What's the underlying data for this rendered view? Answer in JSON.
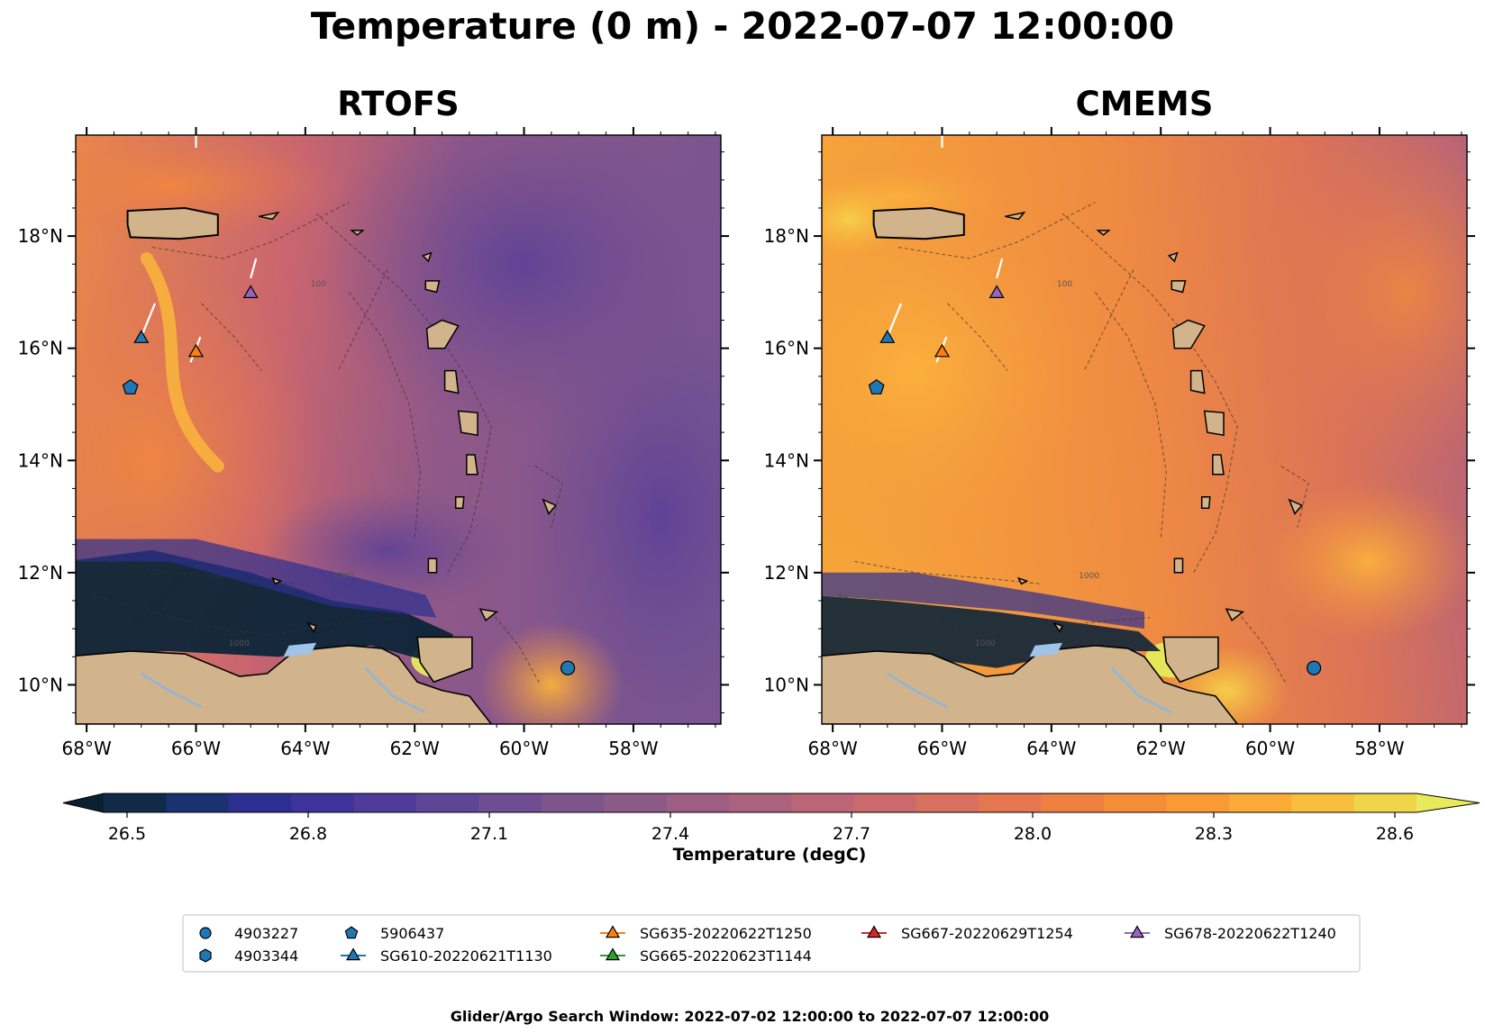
{
  "figure": {
    "title": "Temperature (0 m) - 2022-07-07 12:00:00",
    "footer": "Glider/Argo Search Window: 2022-07-02 12:00:00 to 2022-07-07 12:00:00"
  },
  "map": {
    "lon_range": [
      -68.2,
      -56.4
    ],
    "lat_range": [
      9.3,
      19.8
    ],
    "x_ticks": [
      {
        "value": -68,
        "label": "68°W"
      },
      {
        "value": -66,
        "label": "66°W"
      },
      {
        "value": -64,
        "label": "64°W"
      },
      {
        "value": -62,
        "label": "62°W"
      },
      {
        "value": -60,
        "label": "60°W"
      },
      {
        "value": -58,
        "label": "58°W"
      }
    ],
    "y_ticks": [
      {
        "value": 10,
        "label": "10°N"
      },
      {
        "value": 12,
        "label": "12°N"
      },
      {
        "value": 14,
        "label": "14°N"
      },
      {
        "value": 16,
        "label": "16°N"
      },
      {
        "value": 18,
        "label": "18°N"
      }
    ],
    "isobath_labels": [
      "1000",
      "100",
      "1000"
    ],
    "land_color": "#d2b48c"
  },
  "panels": [
    {
      "title": "RTOFS",
      "style": "rtofs"
    },
    {
      "title": "CMEMS",
      "style": "cmems"
    }
  ],
  "colorbar": {
    "label": "Temperature (degC)",
    "range": [
      26.5,
      28.6
    ],
    "ticks": [
      "26.5",
      "26.8",
      "27.1",
      "27.4",
      "27.7",
      "28.0",
      "28.3",
      "28.6"
    ],
    "colors": [
      "#0a2030",
      "#102a48",
      "#1a3370",
      "#2c2f8f",
      "#3d3399",
      "#503a9a",
      "#5f4595",
      "#6e4e90",
      "#7d558c",
      "#8c5a87",
      "#9c5e82",
      "#ab627c",
      "#bb6676",
      "#ca6a6c",
      "#d8705f",
      "#e4774f",
      "#ee8042",
      "#f58c38",
      "#f99a35",
      "#fbab37",
      "#f7bf3c",
      "#efd548",
      "#e8ea5c"
    ]
  },
  "platforms": [
    {
      "id": "4903227",
      "marker": "circle",
      "color": "#1f77b4",
      "lon": -59.2,
      "lat": 10.3
    },
    {
      "id": "4903344",
      "marker": "hexagon",
      "color": "#1f77b4"
    },
    {
      "id": "5906437",
      "marker": "pentagon",
      "color": "#1f77b4",
      "lon": -67.2,
      "lat": 15.3
    },
    {
      "id": "SG610-20220621T1130",
      "marker": "triangle",
      "color": "#1f77b4",
      "lon": -67.0,
      "lat": 16.2,
      "track": [
        [
          -67.0,
          16.2
        ],
        [
          -66.75,
          16.8
        ]
      ]
    },
    {
      "id": "SG635-20220622T1250",
      "marker": "triangle",
      "color": "#ff7f0e",
      "lon": -66.0,
      "lat": 15.95,
      "track": [
        [
          -66.1,
          15.75
        ],
        [
          -65.92,
          16.2
        ]
      ]
    },
    {
      "id": "SG665-20220623T1144",
      "marker": "triangle",
      "color": "#2ca02c"
    },
    {
      "id": "SG667-20220629T1254",
      "marker": "triangle",
      "color": "#d62728"
    },
    {
      "id": "SG678-20220622T1240",
      "marker": "triangle",
      "color": "#9467bd",
      "lon": -65.0,
      "lat": 17.0,
      "track": [
        [
          -65.0,
          17.25
        ],
        [
          -64.9,
          17.6
        ]
      ]
    }
  ]
}
